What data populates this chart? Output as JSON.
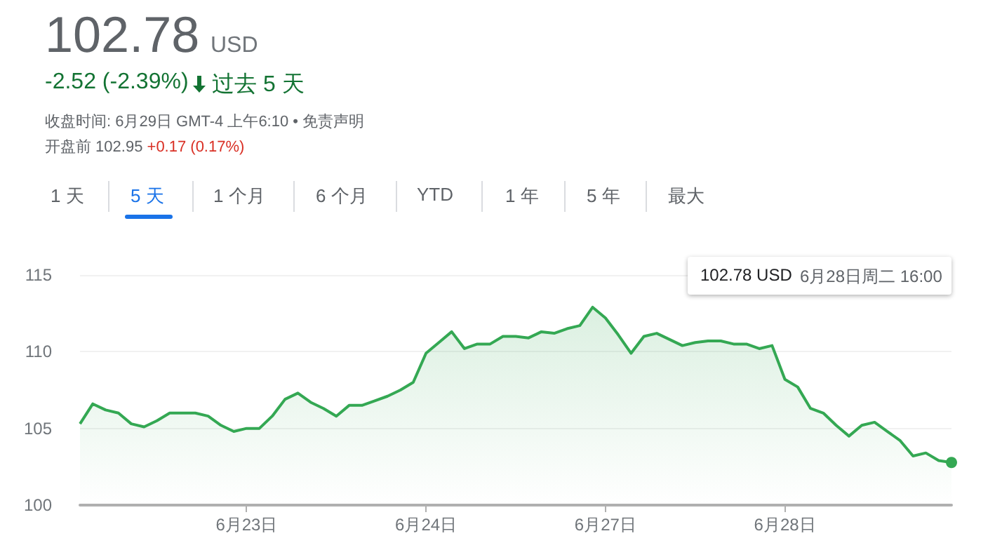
{
  "chart_data": {
    "type": "area",
    "title": "102.78",
    "annotations": [
      "USD",
      "-2.52 (-2.39%)",
      "过去 5 天",
      "收盘时间: 6月29日 GMT-4 上午6:10 • 免责声明",
      "开盘前 102.95",
      "+0.17 (0.17%)",
      "1 天",
      "5 天",
      "1 个月",
      "6 个月",
      "YTD",
      "1 年",
      "5 年",
      "最大",
      "102.78 USD",
      "6月28日周二 16:00"
    ],
    "categories": [
      null,
      null,
      null,
      null,
      null,
      null,
      null,
      null,
      null,
      null,
      null,
      null,
      null,
      "6月23日",
      null,
      null,
      null,
      null,
      null,
      null,
      null,
      null,
      null,
      null,
      null,
      null,
      null,
      "6月24日",
      null,
      null,
      null,
      null,
      null,
      null,
      null,
      null,
      null,
      null,
      null,
      null,
      null,
      "6月27日",
      null,
      null,
      null,
      null,
      null,
      null,
      null,
      null,
      null,
      null,
      null,
      null,
      null,
      "6月28日",
      null,
      null,
      null,
      null,
      null,
      null,
      null,
      null,
      null,
      null,
      null,
      null,
      null
    ],
    "series": [
      {
        "color": "#34a853",
        "values": [
          105.3,
          106.6,
          106.2,
          106.0,
          105.3,
          105.1,
          105.5,
          106.0,
          106.0,
          106.0,
          105.8,
          105.2,
          104.8,
          105.0,
          105.0,
          105.8,
          106.9,
          107.3,
          106.7,
          106.3,
          105.8,
          106.5,
          106.5,
          106.8,
          107.1,
          107.5,
          108.0,
          109.9,
          110.6,
          111.3,
          110.2,
          110.5,
          110.5,
          111.0,
          111.0,
          110.9,
          111.3,
          111.2,
          111.5,
          111.7,
          112.9,
          112.2,
          111.1,
          109.9,
          111.0,
          111.2,
          110.8,
          110.4,
          110.6,
          110.7,
          110.7,
          110.5,
          110.5,
          110.2,
          110.4,
          108.2,
          107.7,
          106.3,
          106.0,
          105.2,
          104.5,
          105.2,
          105.4,
          104.8,
          104.2,
          103.2,
          103.4,
          102.9,
          102.78
        ]
      }
    ],
    "ylim": [
      100,
      115
    ],
    "yticks": [
      100,
      105,
      110,
      115
    ],
    "grid": "y"
  }
}
